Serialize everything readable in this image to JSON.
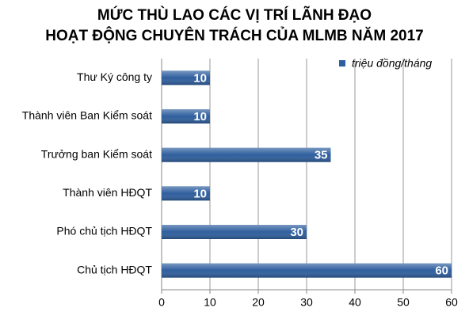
{
  "chart_data": {
    "type": "hbar",
    "title": [
      "MỨC THÙ LAO CÁC VỊ TRÍ LÃNH ĐẠO",
      "HOẠT ĐỘNG CHUYÊN TRÁCH CỦA MLMB NĂM 2017"
    ],
    "categories": [
      "Thư Ký công ty",
      "Thành viên Ban Kiểm soát",
      "Trưởng ban Kiểm soát",
      "Thành viên HĐQT",
      "Phó chủ tịch HĐQT",
      "Chủ tịch HĐQT"
    ],
    "series": [
      {
        "name": "triệu đồng/tháng",
        "color": "#2f5f9e",
        "values": [
          10,
          10,
          35,
          10,
          30,
          60
        ]
      }
    ],
    "xlim": [
      0,
      60
    ],
    "xticks": [
      0,
      10,
      20,
      30,
      40,
      50,
      60
    ],
    "grid": true,
    "legend": "top-right"
  }
}
